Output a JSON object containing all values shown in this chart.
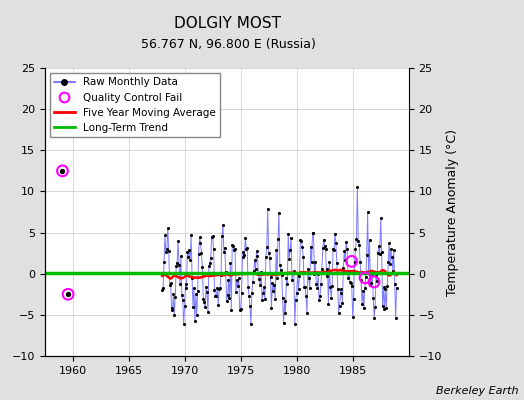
{
  "title": "DOLGIY MOST",
  "subtitle": "56.767 N, 96.800 E (Russia)",
  "ylabel": "Temperature Anomaly (°C)",
  "credit": "Berkeley Earth",
  "xlim": [
    1957.5,
    1990
  ],
  "ylim": [
    -10,
    25
  ],
  "yticks_left": [
    -10,
    -5,
    0,
    5,
    10,
    15,
    20,
    25
  ],
  "yticks_right": [
    -10,
    -5,
    0,
    5,
    10,
    15,
    20,
    25
  ],
  "xticks": [
    1960,
    1965,
    1970,
    1975,
    1980,
    1985
  ],
  "bg_color": "#e0e0e0",
  "plot_bg_color": "#ffffff",
  "raw_line_color": "#6666ff",
  "raw_marker_color": "#000000",
  "moving_avg_color": "#ff0000",
  "trend_color": "#00bb00",
  "qc_fail_color": "#ff00ff",
  "grid_color": "#c8c8c8",
  "title_fontsize": 11,
  "subtitle_fontsize": 9,
  "axis_fontsize": 8,
  "legend_fontsize": 7.5
}
